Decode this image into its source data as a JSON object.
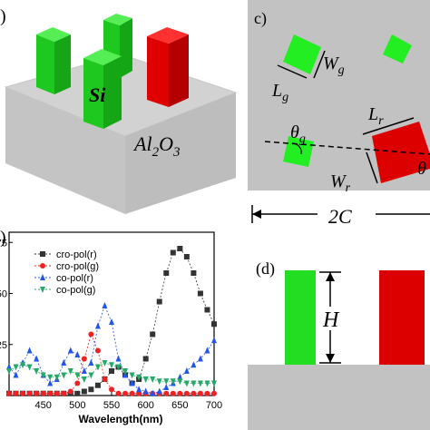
{
  "panel_a": {
    "label": ")",
    "pillar_label": "Si",
    "substrate_base": "Al",
    "substrate_sub": "2",
    "substrate_tail": "O",
    "substrate_sub2": "3",
    "colors": {
      "green": "#22dd22",
      "red": "#dd0000",
      "substrate": "#bdbdbd"
    }
  },
  "panel_c": {
    "label": "c)",
    "wg_base": "W",
    "wg_sub": "g",
    "lg_base": "L",
    "lg_sub": "g",
    "lr_base": "L",
    "lr_sub": "r",
    "wr_base": "W",
    "wr_sub": "r",
    "thg_base": "θ",
    "thg_sub": "g",
    "thr_base": "θ",
    "period": "2C"
  },
  "panel_d": {
    "label": "(d)",
    "height_label": "H"
  },
  "chart_data": {
    "type": "line",
    "xlabel": "Wavelength(nm)",
    "ylabel": "",
    "xlim": [
      400,
      700
    ],
    "ylim": [
      0,
      0.8
    ],
    "x_ticks": [
      "450",
      "500",
      "550",
      "600",
      "650",
      "700"
    ],
    "y_ticks": [
      "25",
      "50",
      "75"
    ],
    "legend_position": "top-left",
    "series": [
      {
        "name": "cro-pol(r)",
        "color": "#333333",
        "marker": "square",
        "x": [
          400,
          410,
          420,
          430,
          440,
          450,
          460,
          470,
          480,
          490,
          500,
          510,
          520,
          530,
          540,
          550,
          560,
          570,
          580,
          590,
          600,
          610,
          620,
          630,
          640,
          650,
          660,
          670,
          680,
          690,
          700
        ],
        "y": [
          0.01,
          0.01,
          0.01,
          0.01,
          0.01,
          0.01,
          0.01,
          0.01,
          0.01,
          0.01,
          0.01,
          0.02,
          0.03,
          0.05,
          0.08,
          0.12,
          0.14,
          0.1,
          0.06,
          0.08,
          0.18,
          0.3,
          0.46,
          0.6,
          0.7,
          0.72,
          0.68,
          0.6,
          0.5,
          0.42,
          0.35
        ]
      },
      {
        "name": "cro-pol(g)",
        "color": "#ee2222",
        "marker": "circle",
        "x": [
          400,
          410,
          420,
          430,
          440,
          450,
          460,
          470,
          480,
          490,
          500,
          510,
          520,
          530,
          540,
          550,
          560,
          570,
          580,
          590,
          600,
          610,
          620,
          630,
          640,
          650,
          660,
          670,
          680,
          690,
          700
        ],
        "y": [
          0.01,
          0.01,
          0.01,
          0.01,
          0.01,
          0.01,
          0.01,
          0.01,
          0.01,
          0.02,
          0.06,
          0.18,
          0.3,
          0.22,
          0.08,
          0.03,
          0.01,
          0.01,
          0.01,
          0.01,
          0.01,
          0.01,
          0.01,
          0.01,
          0.01,
          0.01,
          0.01,
          0.01,
          0.01,
          0.01,
          0.01
        ]
      },
      {
        "name": "co-pol(r)",
        "color": "#2255ee",
        "marker": "triangle-up",
        "x": [
          400,
          410,
          420,
          430,
          440,
          450,
          460,
          470,
          480,
          490,
          500,
          510,
          520,
          530,
          540,
          550,
          560,
          570,
          580,
          590,
          600,
          610,
          620,
          630,
          640,
          650,
          660,
          670,
          680,
          690,
          700
        ],
        "y": [
          0.14,
          0.1,
          0.16,
          0.22,
          0.18,
          0.1,
          0.06,
          0.08,
          0.16,
          0.22,
          0.2,
          0.12,
          0.16,
          0.34,
          0.44,
          0.36,
          0.18,
          0.1,
          0.06,
          0.03,
          0.02,
          0.01,
          0.02,
          0.04,
          0.06,
          0.09,
          0.12,
          0.15,
          0.18,
          0.22,
          0.27
        ]
      },
      {
        "name": "co-pol(g)",
        "color": "#22aa66",
        "marker": "triangle-down",
        "x": [
          400,
          410,
          420,
          430,
          440,
          450,
          460,
          470,
          480,
          490,
          500,
          510,
          520,
          530,
          540,
          550,
          560,
          570,
          580,
          590,
          600,
          610,
          620,
          630,
          640,
          650,
          660,
          670,
          680,
          690,
          700
        ],
        "y": [
          0.12,
          0.14,
          0.15,
          0.14,
          0.12,
          0.1,
          0.09,
          0.09,
          0.1,
          0.12,
          0.1,
          0.08,
          0.1,
          0.14,
          0.16,
          0.15,
          0.14,
          0.12,
          0.1,
          0.09,
          0.08,
          0.08,
          0.07,
          0.07,
          0.07,
          0.07,
          0.06,
          0.06,
          0.06,
          0.06,
          0.06
        ]
      }
    ]
  }
}
